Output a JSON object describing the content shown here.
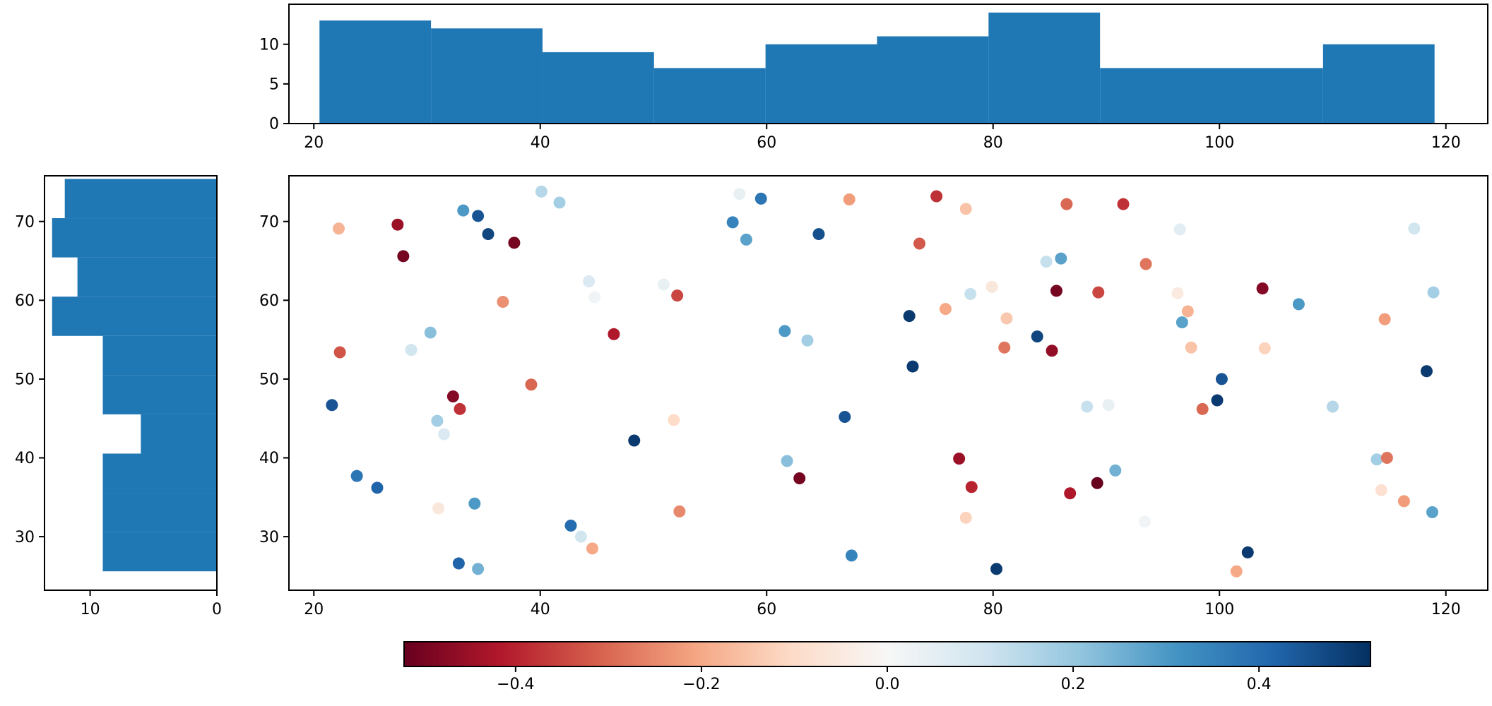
{
  "figure": {
    "background": "#ffffff",
    "histogram_color": "#1f77b4"
  },
  "chart_data": [
    {
      "id": "top_histogram",
      "type": "bar",
      "orientation": "vertical",
      "description": "Marginal histogram of x values (shares x-axis with scatter plot)",
      "bar_color": "#1f77b4",
      "bin_edges": [
        20.5,
        30.35,
        40.2,
        50.05,
        59.9,
        69.75,
        79.6,
        89.45,
        99.3,
        109.15,
        119.0
      ],
      "values": [
        13,
        12,
        9,
        7,
        10,
        11,
        14,
        7,
        7,
        10
      ],
      "xlim": [
        17.8,
        123.7
      ],
      "ylim": [
        0,
        15.05
      ],
      "xticks": [
        20,
        40,
        60,
        80,
        100,
        120
      ],
      "yticks": [
        0,
        5,
        10
      ],
      "grid": false,
      "legend": false
    },
    {
      "id": "left_histogram",
      "type": "bar",
      "orientation": "horizontal",
      "description": "Marginal histogram of y values (shares y-axis with scatter plot, x-axis inverted)",
      "bar_color": "#1f77b4",
      "bin_edges": [
        25.6,
        30.58,
        35.56,
        40.54,
        45.52,
        50.5,
        55.48,
        60.46,
        65.44,
        70.42,
        75.4
      ],
      "values": [
        9,
        9,
        9,
        6,
        9,
        9,
        13,
        11,
        13,
        12
      ],
      "xlim": [
        13.6,
        0
      ],
      "ylim": [
        23.2,
        75.8
      ],
      "xticks": [
        10,
        0
      ],
      "yticks": [
        30,
        40,
        50,
        60,
        70
      ],
      "grid": false,
      "legend": false
    },
    {
      "id": "scatter",
      "type": "scatter",
      "description": "Scatter of ~100 points colored by a value on a RdBu diverging colormap",
      "xlim": [
        17.8,
        123.7
      ],
      "ylim": [
        23.2,
        75.8
      ],
      "xticks": [
        20,
        40,
        60,
        80,
        100,
        120
      ],
      "yticks": [
        30,
        40,
        50,
        60,
        70
      ],
      "marker_radius": 8.5,
      "colormap": "RdBu",
      "vmin": -0.52,
      "vmax": 0.52,
      "grid": false,
      "legend": false,
      "points": [
        [
          21.6,
          46.7,
          0.45
        ],
        [
          22.3,
          53.4,
          -0.33
        ],
        [
          22.2,
          69.1,
          -0.18
        ],
        [
          23.8,
          37.7,
          0.38
        ],
        [
          25.6,
          36.2,
          0.42
        ],
        [
          27.4,
          69.6,
          -0.45
        ],
        [
          27.9,
          65.6,
          -0.5
        ],
        [
          28.6,
          53.7,
          0.1
        ],
        [
          30.3,
          55.9,
          0.22
        ],
        [
          30.9,
          44.7,
          0.18
        ],
        [
          31.5,
          43.0,
          0.08
        ],
        [
          31.0,
          33.6,
          -0.06
        ],
        [
          32.3,
          47.8,
          -0.48
        ],
        [
          32.9,
          46.2,
          -0.38
        ],
        [
          32.8,
          26.6,
          0.42
        ],
        [
          34.5,
          25.9,
          0.25
        ],
        [
          34.2,
          34.2,
          0.3
        ],
        [
          33.2,
          71.4,
          0.3
        ],
        [
          34.5,
          70.7,
          0.45
        ],
        [
          35.4,
          68.4,
          0.48
        ],
        [
          36.7,
          59.8,
          -0.24
        ],
        [
          37.7,
          67.3,
          -0.5
        ],
        [
          39.2,
          49.3,
          -0.3
        ],
        [
          40.1,
          73.8,
          0.15
        ],
        [
          41.7,
          72.4,
          0.18
        ],
        [
          42.7,
          31.4,
          0.4
        ],
        [
          43.6,
          30.0,
          0.1
        ],
        [
          44.6,
          28.5,
          -0.2
        ],
        [
          44.3,
          62.4,
          0.08
        ],
        [
          44.8,
          60.4,
          0.02
        ],
        [
          46.5,
          55.7,
          -0.42
        ],
        [
          48.3,
          42.2,
          0.5
        ],
        [
          50.9,
          62.0,
          0.04
        ],
        [
          52.1,
          60.6,
          -0.35
        ],
        [
          51.8,
          44.8,
          -0.1
        ],
        [
          52.3,
          33.2,
          -0.25
        ],
        [
          57.0,
          69.9,
          0.35
        ],
        [
          57.6,
          73.5,
          0.04
        ],
        [
          58.2,
          67.7,
          0.28
        ],
        [
          59.5,
          72.9,
          0.38
        ],
        [
          61.6,
          56.1,
          0.3
        ],
        [
          63.6,
          54.9,
          0.18
        ],
        [
          61.8,
          39.6,
          0.22
        ],
        [
          62.9,
          37.4,
          -0.5
        ],
        [
          64.6,
          68.4,
          0.46
        ],
        [
          66.9,
          45.2,
          0.45
        ],
        [
          67.3,
          72.8,
          -0.22
        ],
        [
          67.5,
          27.6,
          0.35
        ],
        [
          72.6,
          58.0,
          0.5
        ],
        [
          72.9,
          51.6,
          0.5
        ],
        [
          73.5,
          67.2,
          -0.32
        ],
        [
          75.0,
          73.2,
          -0.38
        ],
        [
          75.8,
          58.9,
          -0.2
        ],
        [
          77.6,
          71.6,
          -0.15
        ],
        [
          77.0,
          39.9,
          -0.45
        ],
        [
          78.1,
          36.3,
          -0.4
        ],
        [
          78.0,
          60.8,
          0.12
        ],
        [
          79.9,
          61.7,
          -0.06
        ],
        [
          77.6,
          32.4,
          -0.12
        ],
        [
          80.3,
          25.9,
          0.5
        ],
        [
          81.2,
          57.7,
          -0.14
        ],
        [
          81.0,
          54.0,
          -0.28
        ],
        [
          83.9,
          55.4,
          0.48
        ],
        [
          85.2,
          53.6,
          -0.46
        ],
        [
          85.6,
          61.2,
          -0.5
        ],
        [
          89.3,
          61.0,
          -0.35
        ],
        [
          86.0,
          65.3,
          0.28
        ],
        [
          84.7,
          64.9,
          0.12
        ],
        [
          86.5,
          72.2,
          -0.3
        ],
        [
          86.8,
          35.5,
          -0.42
        ],
        [
          89.2,
          36.8,
          -0.52
        ],
        [
          88.3,
          46.5,
          0.12
        ],
        [
          90.2,
          46.7,
          0.04
        ],
        [
          90.8,
          38.4,
          0.25
        ],
        [
          91.5,
          72.2,
          -0.38
        ],
        [
          93.5,
          64.6,
          -0.28
        ],
        [
          96.5,
          69.0,
          0.06
        ],
        [
          96.7,
          57.2,
          0.28
        ],
        [
          96.3,
          60.9,
          -0.05
        ],
        [
          97.5,
          54.0,
          -0.15
        ],
        [
          97.2,
          58.6,
          -0.18
        ],
        [
          98.5,
          46.2,
          -0.3
        ],
        [
          93.4,
          31.9,
          0.02
        ],
        [
          99.8,
          47.3,
          0.5
        ],
        [
          100.2,
          50.0,
          0.45
        ],
        [
          102.5,
          28.0,
          0.5
        ],
        [
          101.5,
          25.6,
          -0.2
        ],
        [
          103.8,
          61.5,
          -0.48
        ],
        [
          107.0,
          59.5,
          0.3
        ],
        [
          104.0,
          53.9,
          -0.12
        ],
        [
          110.0,
          46.5,
          0.15
        ],
        [
          113.9,
          39.8,
          0.18
        ],
        [
          114.8,
          40.0,
          -0.28
        ],
        [
          114.3,
          35.9,
          -0.08
        ],
        [
          116.3,
          34.5,
          -0.22
        ],
        [
          118.8,
          33.1,
          0.28
        ],
        [
          114.6,
          57.6,
          -0.22
        ],
        [
          117.2,
          69.1,
          0.1
        ],
        [
          118.9,
          61.0,
          0.18
        ],
        [
          118.3,
          51.0,
          0.5
        ]
      ]
    },
    {
      "id": "colorbar",
      "type": "colorbar",
      "orientation": "horizontal",
      "colormap": "RdBu",
      "vmin": -0.52,
      "vmax": 0.52,
      "ticks": [
        -0.4,
        -0.2,
        0.0,
        0.2,
        0.4
      ],
      "tick_labels": [
        "−0.4",
        "−0.2",
        "0.0",
        "0.2",
        "0.4"
      ],
      "gradient_stops": [
        "#67001f",
        "#b2182b",
        "#d6604d",
        "#f4a582",
        "#fddbc7",
        "#f7f7f7",
        "#d1e5f0",
        "#92c5de",
        "#4393c3",
        "#2166ac",
        "#053061"
      ]
    }
  ]
}
